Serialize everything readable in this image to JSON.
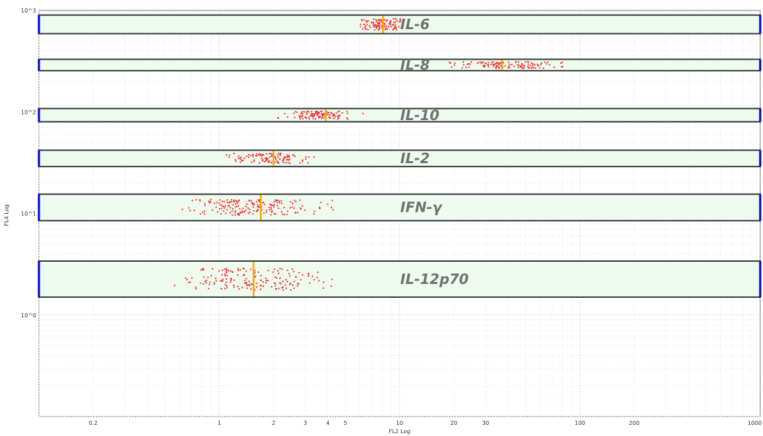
{
  "chart_data": {
    "type": "scatter",
    "title": "",
    "xlabel": "FL2 Log",
    "ylabel": "FL4 Log",
    "x_scale": "log",
    "y_scale": "log",
    "xlim": [
      0.1,
      1000
    ],
    "ylim": [
      0.1,
      1000
    ],
    "grid": true,
    "x_tick_labels": [
      {
        "value": 0.2,
        "label": "0.2"
      },
      {
        "value": 1,
        "label": "1"
      },
      {
        "value": 2,
        "label": "2"
      },
      {
        "value": 3,
        "label": "3"
      },
      {
        "value": 4,
        "label": "4"
      },
      {
        "value": 5,
        "label": "5"
      },
      {
        "value": 10,
        "label": "10"
      },
      {
        "value": 20,
        "label": "20"
      },
      {
        "value": 30,
        "label": "30"
      },
      {
        "value": 100,
        "label": "100"
      },
      {
        "value": 200,
        "label": "200"
      },
      {
        "value": 1000,
        "label": "1000"
      }
    ],
    "y_tick_labels": [
      {
        "value": 1000,
        "label": "10^3"
      },
      {
        "value": 100,
        "label": "10^2"
      },
      {
        "value": 10,
        "label": "10^1"
      },
      {
        "value": 1,
        "label": "10^0"
      }
    ],
    "point_color": "#ff2a2a",
    "median_color": "#ffa500",
    "gate_fill": "#eefbee",
    "gate_border": "#2e3b36",
    "gate_edge_color": "#0000dd",
    "label_color": "#6f7372",
    "gates": [
      {
        "name": "IL-6",
        "y_range": [
          590,
          900
        ],
        "x_range": [
          6.0,
          10.5
        ],
        "x_center": 7.9,
        "x_spread": 0.14,
        "n_points": 110,
        "median_x": 8.1
      },
      {
        "name": "IL-8",
        "y_range": [
          255,
          330
        ],
        "x_range": [
          4.0,
          85
        ],
        "x_center": 40,
        "x_spread": 0.28,
        "n_points": 120,
        "median_x": 37
      },
      {
        "name": "IL-10",
        "y_range": [
          80,
          108
        ],
        "x_range": [
          1.5,
          8.0
        ],
        "x_center": 3.6,
        "x_spread": 0.18,
        "n_points": 110,
        "median_x": 3.9
      },
      {
        "name": "IL-2",
        "y_range": [
          29,
          42
        ],
        "x_range": [
          0.45,
          4.0
        ],
        "x_center": 1.9,
        "x_spread": 0.22,
        "n_points": 110,
        "median_x": 2.0
      },
      {
        "name": "IFN-γ",
        "y_range": [
          8.5,
          15.5
        ],
        "x_range": [
          0.12,
          6.5
        ],
        "x_center": 1.5,
        "x_spread": 0.36,
        "n_points": 190,
        "median_x": 1.7
      },
      {
        "name": "IL-12p70",
        "y_range": [
          1.5,
          3.4
        ],
        "x_range": [
          0.22,
          6.0
        ],
        "x_center": 1.5,
        "x_spread": 0.36,
        "n_points": 170,
        "median_x": 1.55
      }
    ]
  }
}
